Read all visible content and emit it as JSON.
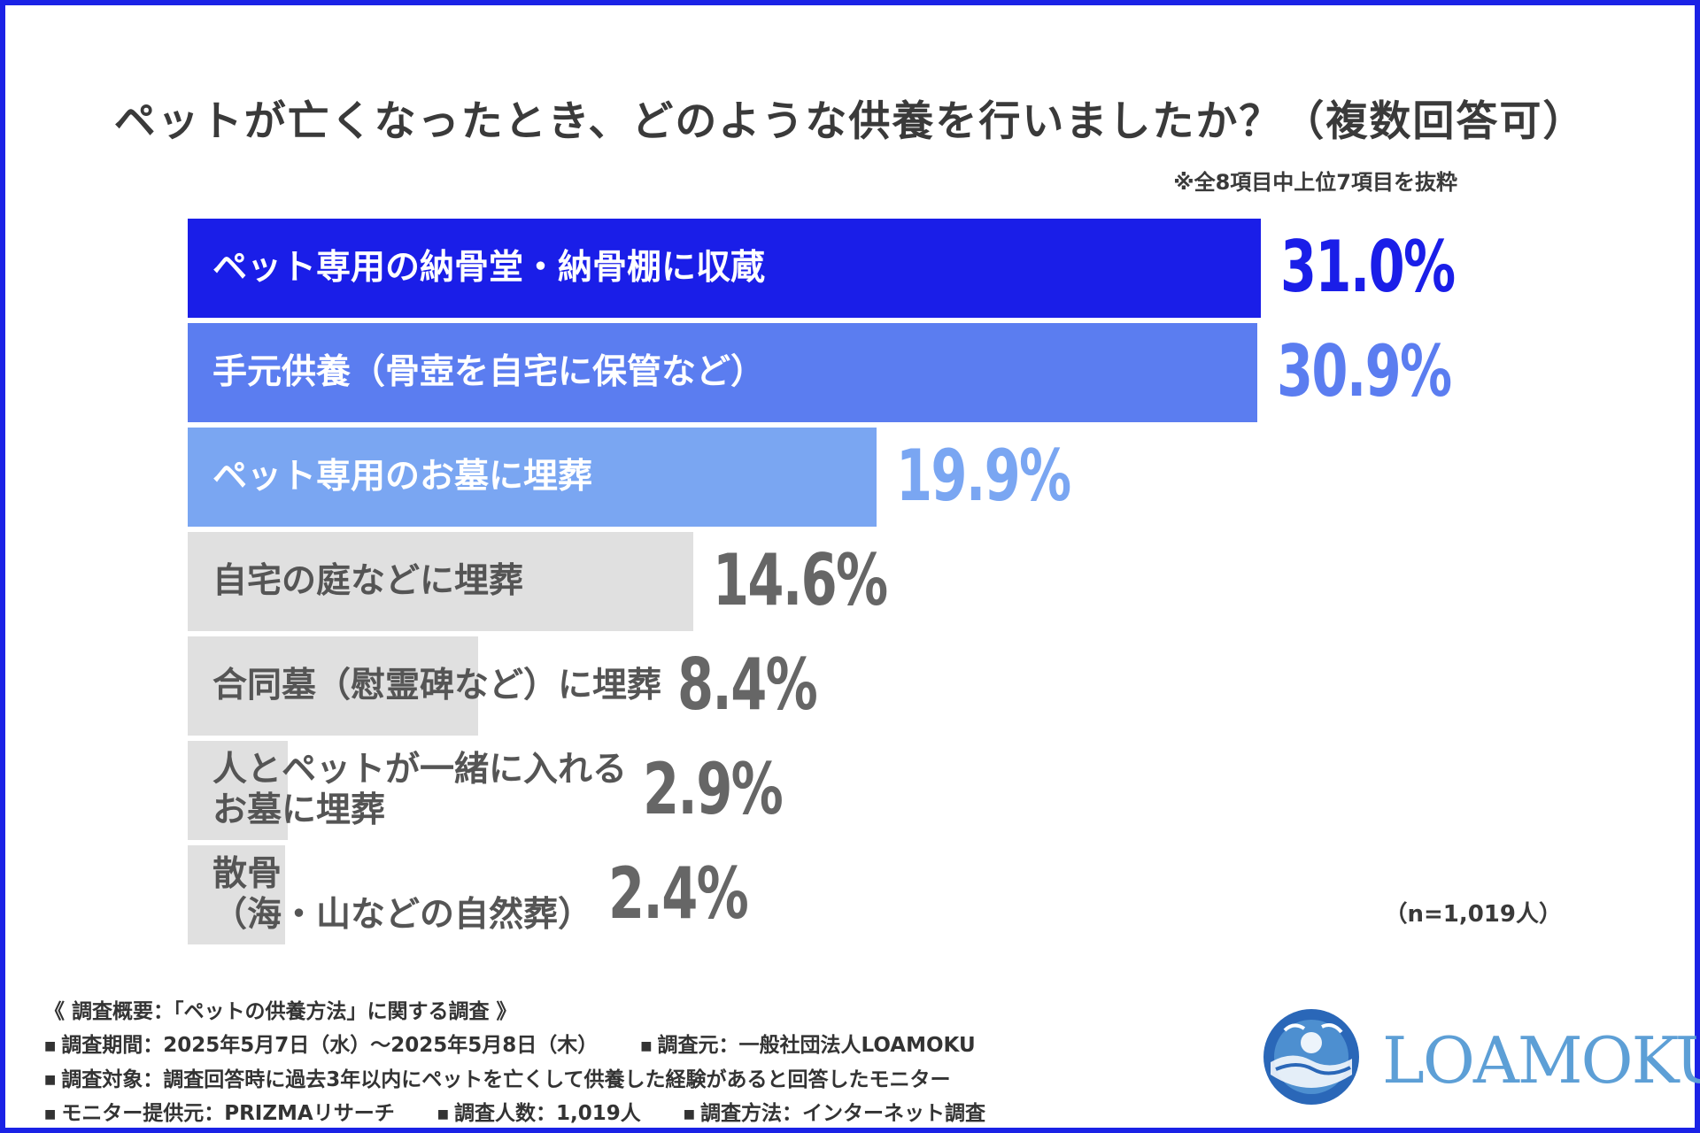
{
  "title": "ペットが亡くなったとき、どのような供養を行いましたか？（複数回答可）",
  "note": "※全8項目中上位7項目を抜粋",
  "sample_size": "（n=1,019人）",
  "chart_data": {
    "type": "bar",
    "orientation": "horizontal",
    "categories": [
      "ペット専用の納骨堂・納骨棚に収蔵",
      "手元供養（骨壺を自宅に保管など）",
      "ペット専用のお墓に埋葬",
      "自宅の庭などに埋葬",
      "合同墓（慰霊碑など）に埋葬",
      "人とペットが一緒に入れるお墓に埋葬",
      "散骨（海・山などの自然葬）"
    ],
    "label_lines": [
      [
        "ペット専用の納骨堂・納骨棚に収蔵"
      ],
      [
        "手元供養（骨壺を自宅に保管など）"
      ],
      [
        "ペット専用のお墓に埋葬"
      ],
      [
        "自宅の庭などに埋葬"
      ],
      [
        "合同墓（慰霊碑など）に埋葬"
      ],
      [
        "人とペットが一緒に入れる",
        "お墓に埋葬"
      ],
      [
        "散骨",
        "（海・山などの自然葬）"
      ]
    ],
    "values": [
      31.0,
      30.9,
      19.9,
      14.6,
      8.4,
      2.9,
      2.4
    ],
    "value_labels": [
      "31.0%",
      "30.9%",
      "19.9%",
      "14.6%",
      "8.4%",
      "2.9%",
      "2.4%"
    ],
    "bar_colors": [
      "#1a1ee8",
      "#5b7df0",
      "#7aa6f2",
      "#e0e0e0",
      "#e0e0e0",
      "#e0e0e0",
      "#e0e0e0"
    ],
    "label_colors": [
      "#ffffff",
      "#ffffff",
      "#ffffff",
      "#555555",
      "#555555",
      "#555555",
      "#555555"
    ],
    "value_colors": [
      "#1a1ee8",
      "#5b7df0",
      "#7aa6f2",
      "#666666",
      "#666666",
      "#666666",
      "#666666"
    ]
  },
  "survey": {
    "heading": "《 調査概要：「ペットの供養方法」に関する調査 》",
    "period": "調査期間：2025年5月7日（水）～2025年5月8日（木）",
    "source": "調査元：一般社団法人LOAMOKU",
    "target": "調査対象：調査回答時に過去3年以内にペットを亡くして供養した経験があると回答したモニター",
    "provider": "モニター提供元：PRIZMAリサーチ",
    "count": "調査人数：1,019人",
    "method": "調査方法：インターネット調査"
  },
  "logo": {
    "text": "LOAMOKU",
    "colors": [
      "#1f5fb0",
      "#5d9fd6"
    ]
  }
}
